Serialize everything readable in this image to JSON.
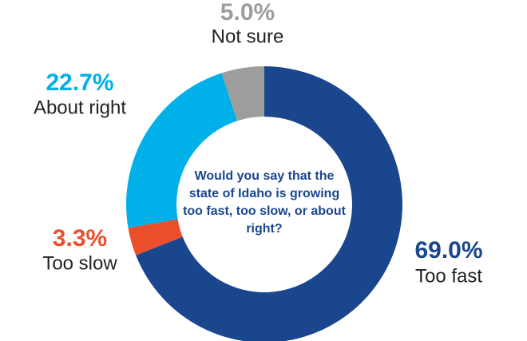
{
  "chart_data": {
    "type": "donut",
    "title": "Would you say that the state of Idaho is growing too fast, too slow, or about right?",
    "categories": [
      "Too fast",
      "Too slow",
      "About right",
      "Not sure"
    ],
    "values": [
      69.0,
      3.3,
      22.7,
      5.0
    ],
    "value_labels": [
      "69.0%",
      "3.3%",
      "22.7%",
      "5.0%"
    ],
    "colors": [
      "#1a468e",
      "#ea4e2b",
      "#00b0e8",
      "#9d9d9d"
    ]
  }
}
